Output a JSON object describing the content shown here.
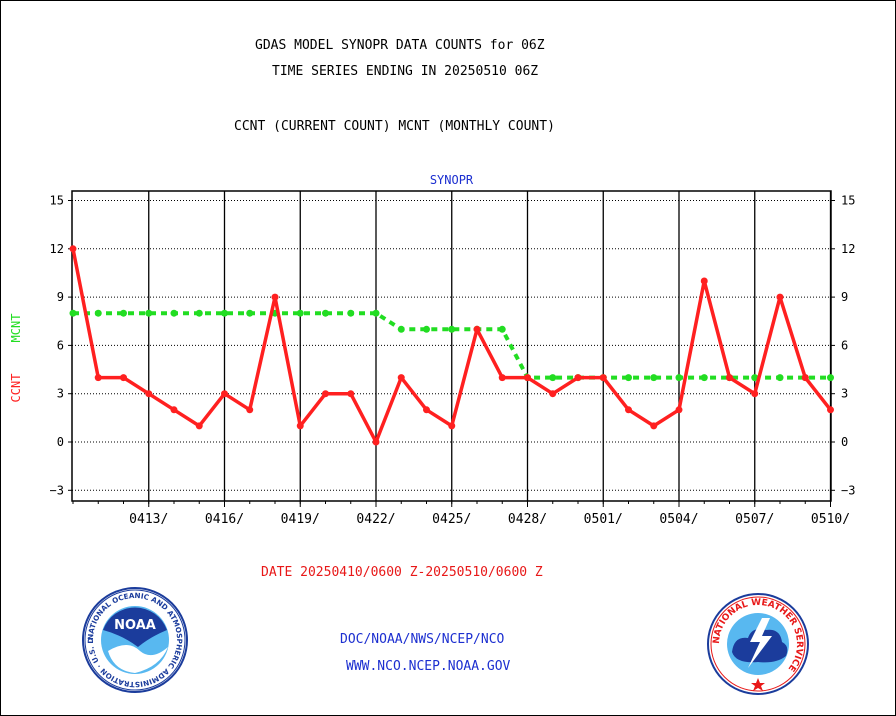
{
  "header": {
    "title_line1": "GDAS MODEL SYNOPR DATA COUNTS for 06Z",
    "title_line2": "TIME SERIES ENDING IN 20250510 06Z",
    "subtitle": "CCNT (CURRENT COUNT) MCNT (MONTHLY COUNT)"
  },
  "footer": {
    "date_range": "DATE 20250410/0600 Z-20250510/0600 Z",
    "org_line": "DOC/NOAA/NWS/NCEP/NCO",
    "web_line": "WWW.NCO.NCEP.NOAA.GOV",
    "noaa_logo_text": "NOAA",
    "noaa_ring_text": "NATIONAL OCEANIC AND ATMOSPHERIC ADMINISTRATION · U.S. DEPARTMENT OF COMMERCE",
    "nws_ring_text": "NATIONAL WEATHER SERVICE"
  },
  "colors": {
    "ccnt": "#ff2020",
    "mcnt": "#22dd22",
    "title_blue": "#1c2fd0",
    "footer_red": "#e81818",
    "footer_blue": "#1c2fd0",
    "noaa_blue": "#1b3c9c",
    "noaa_light": "#58b8f0"
  },
  "chart_data": {
    "type": "line",
    "title": "SYNOPR",
    "ylabel_left_1": "CCNT",
    "ylabel_left_2": "MCNT",
    "ylim": [
      -3.5,
      15.5
    ],
    "yticks": [
      15,
      12,
      9,
      6,
      3,
      0,
      -3
    ],
    "grid": true,
    "x": [
      "0410",
      "0411",
      "0412",
      "0413",
      "0414",
      "0415",
      "0416",
      "0417",
      "0418",
      "0419",
      "0420",
      "0421",
      "0422",
      "0423",
      "0424",
      "0425",
      "0426",
      "0427",
      "0428",
      "0429",
      "0430",
      "0501",
      "0502",
      "0503",
      "0504",
      "0505",
      "0506",
      "0507",
      "0508",
      "0509",
      "0510"
    ],
    "xtick_labels": [
      "0413/",
      "0416/",
      "0419/",
      "0422/",
      "0425/",
      "0428/",
      "0501/",
      "0504/",
      "0507/",
      "0510/"
    ],
    "series": [
      {
        "name": "CCNT",
        "values": [
          12,
          4,
          4,
          3,
          2,
          1,
          3,
          2,
          9,
          1,
          3,
          3,
          0,
          4,
          2,
          1,
          7,
          4,
          4,
          3,
          4,
          4,
          2,
          1,
          2,
          10,
          4,
          3,
          9,
          4,
          2
        ]
      },
      {
        "name": "MCNT",
        "values": [
          8,
          8,
          8,
          8,
          8,
          8,
          8,
          8,
          8,
          8,
          8,
          8,
          8,
          7,
          7,
          7,
          7,
          7,
          4,
          4,
          4,
          4,
          4,
          4,
          4,
          4,
          4,
          4,
          4,
          4,
          4
        ]
      }
    ]
  }
}
